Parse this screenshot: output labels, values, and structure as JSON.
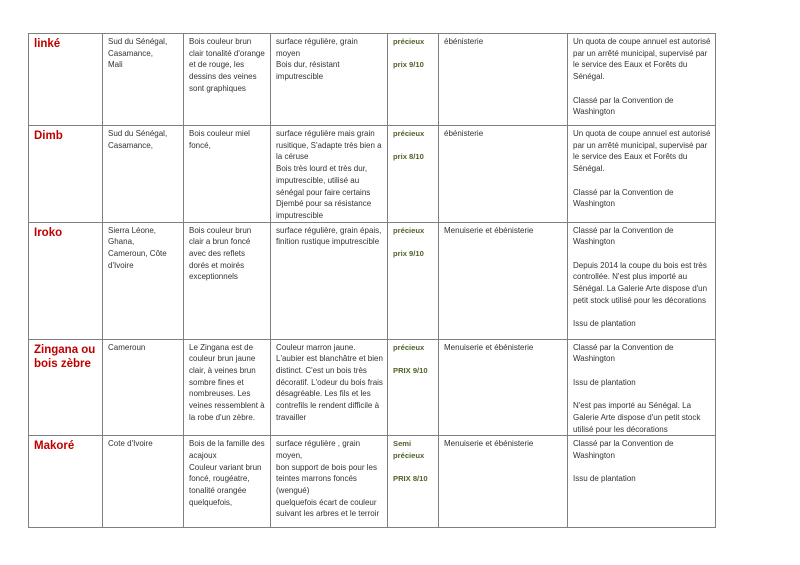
{
  "colors": {
    "name": "#c00000",
    "rating": "#4f6228",
    "border": "#7f7f7f"
  },
  "rows": [
    {
      "name": "linké",
      "origin": "Sud du Sénégal,\nCasamance,\nMali",
      "description": "Bois couleur brun clair tonalité d'orange et de rouge, les dessins des veines sont graphiques",
      "surface": "surface régulière, grain moyen\nBois dur, résistant imputrescible",
      "category": "précieux",
      "price": "prix 9/10",
      "usage": "ébénisterie",
      "notes": [
        "Un quota de coupe annuel est autorisé par un arrêté municipal, supervisé par le service des Eaux et Forêts du Sénégal.",
        "Classé par la Convention de Washington"
      ]
    },
    {
      "name": "Dimb",
      "origin": "Sud du Sénégal,\nCasamance,",
      "description": "Bois couleur miel foncé,",
      "surface": "surface régulière mais grain rusitique, S'adapte très bien a la céruse\nBois très lourd et très dur, imputrescible, utilisé au sénégal pour faire certains Djembé pour sa résistance imputrescible",
      "category": "précieux",
      "price": "prix 8/10",
      "usage": "ébénisterie",
      "notes": [
        "Un quota de coupe annuel est autorisé par un arrêté municipal, supervisé par le service des Eaux et Forêts du Sénégal.",
        "Classé par la Convention de Washington"
      ]
    },
    {
      "name": "Iroko",
      "origin": "Sierra Léone,\nGhana,\nCameroun, Côte d'Ivoire",
      "description": "Bois couleur brun clair a brun foncé avec des reflets dorés et moirés exceptionnels",
      "surface": "surface régulière,  grain épais, finition rustique imputrescible",
      "category": "précieux",
      "price": "prix 9/10",
      "usage": "Menuiserie et ébénisterie",
      "notes": [
        "Classé par la Convention de Washington",
        "Depuis 2014 la coupe du bois est très controllée. N'est plus importé au Sénégal. La Galerie Arte dispose d'un petit stock utilisé pour les décorations",
        "Issu de plantation"
      ]
    },
    {
      "name": "Zingana ou bois zèbre",
      "origin": "Cameroun",
      "description": "Le Zingana est de couleur brun jaune clair, à veines brun sombre fines et nombreuses. Les veines ressemblent à la robe d'un zèbre.",
      "surface": "Couleur marron jaune. L'aubier est blanchâtre et bien distinct. C'est un bois très décoratif. L'odeur du bois frais désagréable. Les fils et les contrefils le rendent difficile à travailler",
      "category": "précieux",
      "price": "PRIX 9/10",
      "usage": "Menuiserie et ébénisterie",
      "notes": [
        "Classé par la Convention de Washington",
        "Issu de plantation",
        "N'est pas importé au Sénégal. La Galerie Arte dispose d'un petit stock utilisé pour les décorations"
      ]
    },
    {
      "name": "Makoré",
      "origin": "Cote d'Ivoire",
      "description": "Bois de la famille des  acajoux\nCouleur variant brun foncé, rougéatre, tonalité orangée quelquefois,",
      "surface": "surface régulière , grain moyen,\nbon support de bois pour les teintes marrons foncés (wengué)\nquelquefois écart de couleur suivant les arbres et le terroir",
      "category": "Semi précieux",
      "price": "PRIX 8/10",
      "usage": "Menuiserie et ébénisterie",
      "notes": [
        "Classé par la Convention de Washington",
        "Issu de plantation"
      ]
    }
  ]
}
